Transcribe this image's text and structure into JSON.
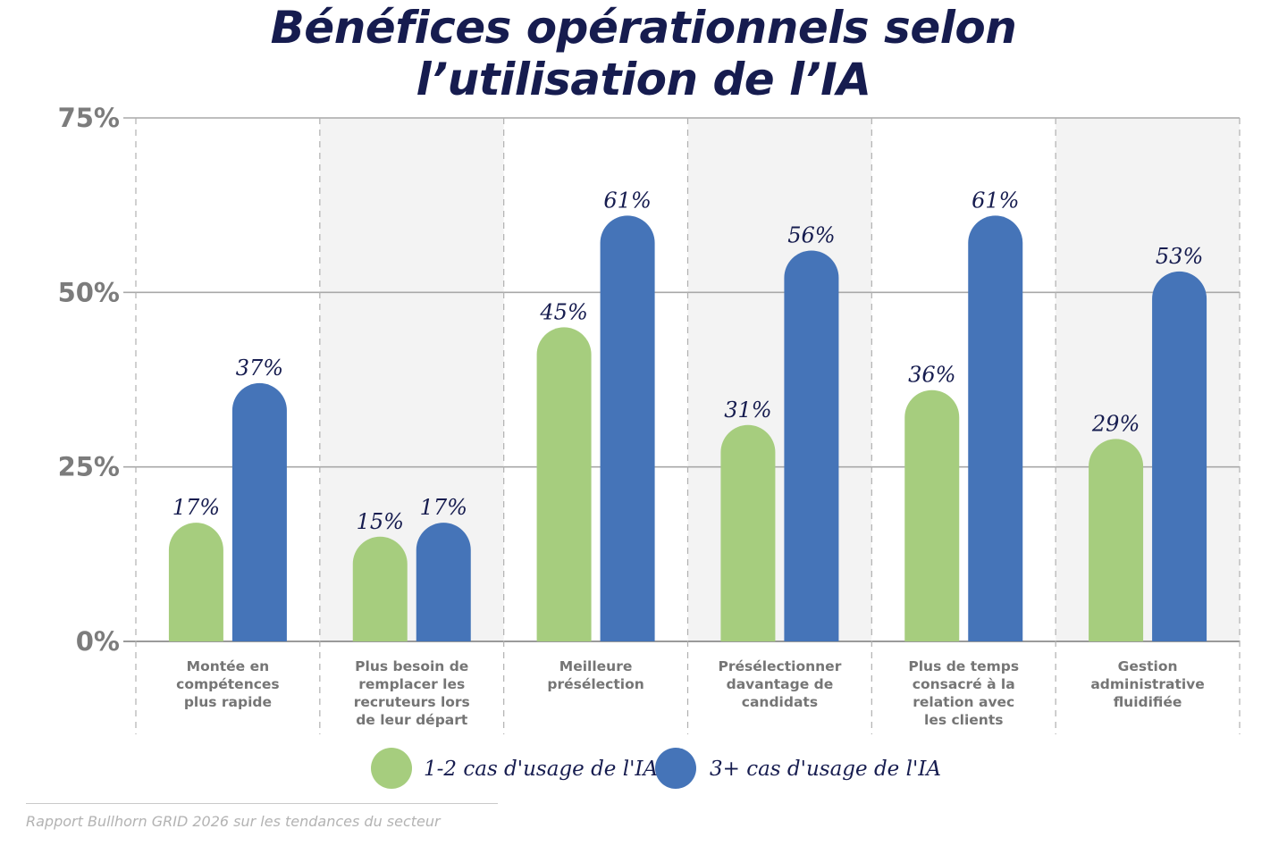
{
  "title_lines": [
    "Bénéfices opérationnels selon",
    "l’utilisation de l’IA"
  ],
  "source": "Rapport Bullhorn GRID 2026 sur les tendances du secteur",
  "colors": {
    "series1": "#a6cd7e",
    "series2": "#4574b8",
    "title": "#161c4f",
    "axis": "#7c7c7c",
    "band": "#f3f3f3"
  },
  "chart_data": {
    "type": "bar",
    "title": "Bénéfices opérationnels selon l’utilisation de l’IA",
    "xlabel": "",
    "ylabel": "",
    "ylim": [
      0,
      75
    ],
    "y_ticks": [
      0,
      25,
      50,
      75
    ],
    "y_tick_labels": [
      "0%",
      "25%",
      "50%",
      "75%"
    ],
    "grid": true,
    "legend_position": "bottom",
    "categories": [
      [
        "Montée en",
        "compétences",
        "plus rapide"
      ],
      [
        "Plus besoin de",
        "remplacer les",
        "recruteurs lors",
        "de leur départ"
      ],
      [
        "Meilleure",
        "présélection"
      ],
      [
        "Présélectionner",
        "davantage de",
        "candidats"
      ],
      [
        "Plus de temps",
        "consacré à la",
        "relation avec",
        "les clients"
      ],
      [
        "Gestion",
        "administrative",
        "fluidifiée"
      ]
    ],
    "series": [
      {
        "name": "1-2 cas d'usage de l'IA",
        "values": [
          17,
          15,
          45,
          31,
          36,
          29
        ],
        "labels": [
          "17%",
          "15%",
          "45%",
          "31%",
          "36%",
          "29%"
        ]
      },
      {
        "name": "3+ cas d'usage de l'IA",
        "values": [
          37,
          17,
          61,
          56,
          61,
          53
        ],
        "labels": [
          "37%",
          "17%",
          "61%",
          "56%",
          "61%",
          "53%"
        ]
      }
    ]
  }
}
